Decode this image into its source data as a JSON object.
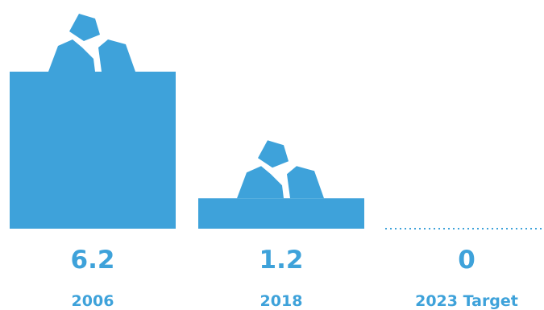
{
  "chart_data": {
    "type": "bar",
    "title": "",
    "xlabel": "",
    "ylabel": "",
    "categories": [
      "2006",
      "2018",
      "2023 Target"
    ],
    "values": [
      6.2,
      1.2,
      0
    ],
    "value_labels": [
      "6.2",
      "1.2",
      "0"
    ],
    "ylim": [
      0,
      6.2
    ],
    "grid": false,
    "legend": "none",
    "decoration_icons": [
      "rock-pile-icon",
      "rock-pile-icon",
      null
    ]
  },
  "colors": {
    "bar": "#3ea2da",
    "label": "#3ea2da",
    "rock_gap": "#ffffff"
  }
}
